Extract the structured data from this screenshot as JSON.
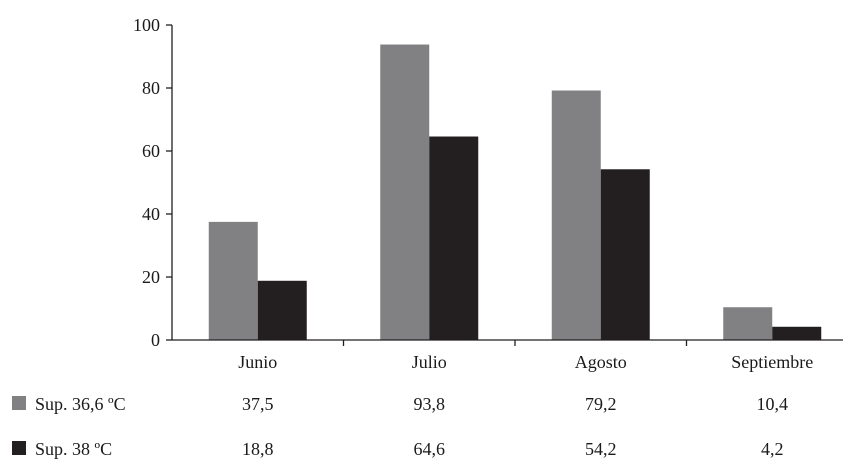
{
  "chart_data": {
    "type": "bar",
    "title": "",
    "xlabel": "",
    "ylabel": "",
    "ylim": [
      0,
      100
    ],
    "yticks": [
      "0",
      "20",
      "40",
      "60",
      "80",
      "100"
    ],
    "grid": false,
    "legend_placement": "bottom-left (data table rows)",
    "categories": [
      "Junio",
      "Julio",
      "Agosto",
      "Septiembre"
    ],
    "series": [
      {
        "name": "Sup. 36,6 ºC",
        "color": "#818184",
        "values": [
          37.5,
          93.8,
          79.2,
          10.4
        ],
        "labels": [
          "37,5",
          "93,8",
          "79,2",
          "10,4"
        ]
      },
      {
        "name": "Sup. 38 ºC",
        "color": "#231f20",
        "values": [
          18.8,
          64.6,
          54.2,
          4.2
        ],
        "labels": [
          "18,8",
          "64,6",
          "54,2",
          "4,2"
        ]
      }
    ]
  }
}
